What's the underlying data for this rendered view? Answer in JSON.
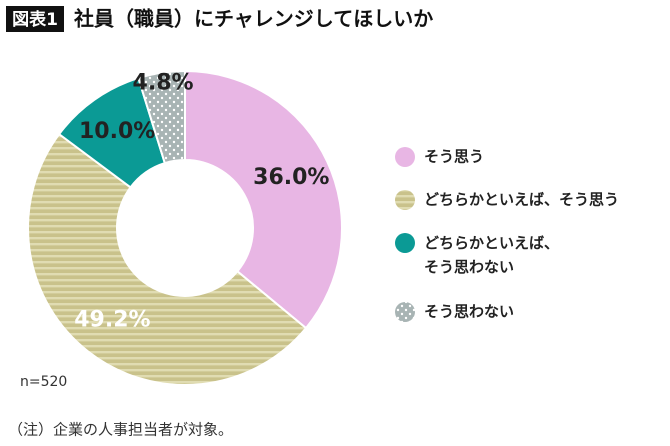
{
  "chart_data": {
    "type": "donut",
    "badge": "図表1",
    "title": "社員（職員）にチャレンジしてほしいか",
    "categories": [
      "そう思う",
      "どちらかといえば、そう思う",
      "どちらかといえば、そう思わない",
      "そう思わない"
    ],
    "values": [
      36.0,
      49.2,
      10.0,
      4.8
    ],
    "value_labels": [
      "36.0%",
      "49.2%",
      "10.0%",
      "4.8%"
    ],
    "colors": [
      "#e8b6e4",
      "#c9c28b",
      "#0b9a95",
      "#a8b4b4"
    ],
    "patterns": [
      "solid",
      "stripes",
      "solid",
      "dots"
    ],
    "note": "n=520",
    "footnote": "（注）企業の人事担当者が対象。"
  }
}
